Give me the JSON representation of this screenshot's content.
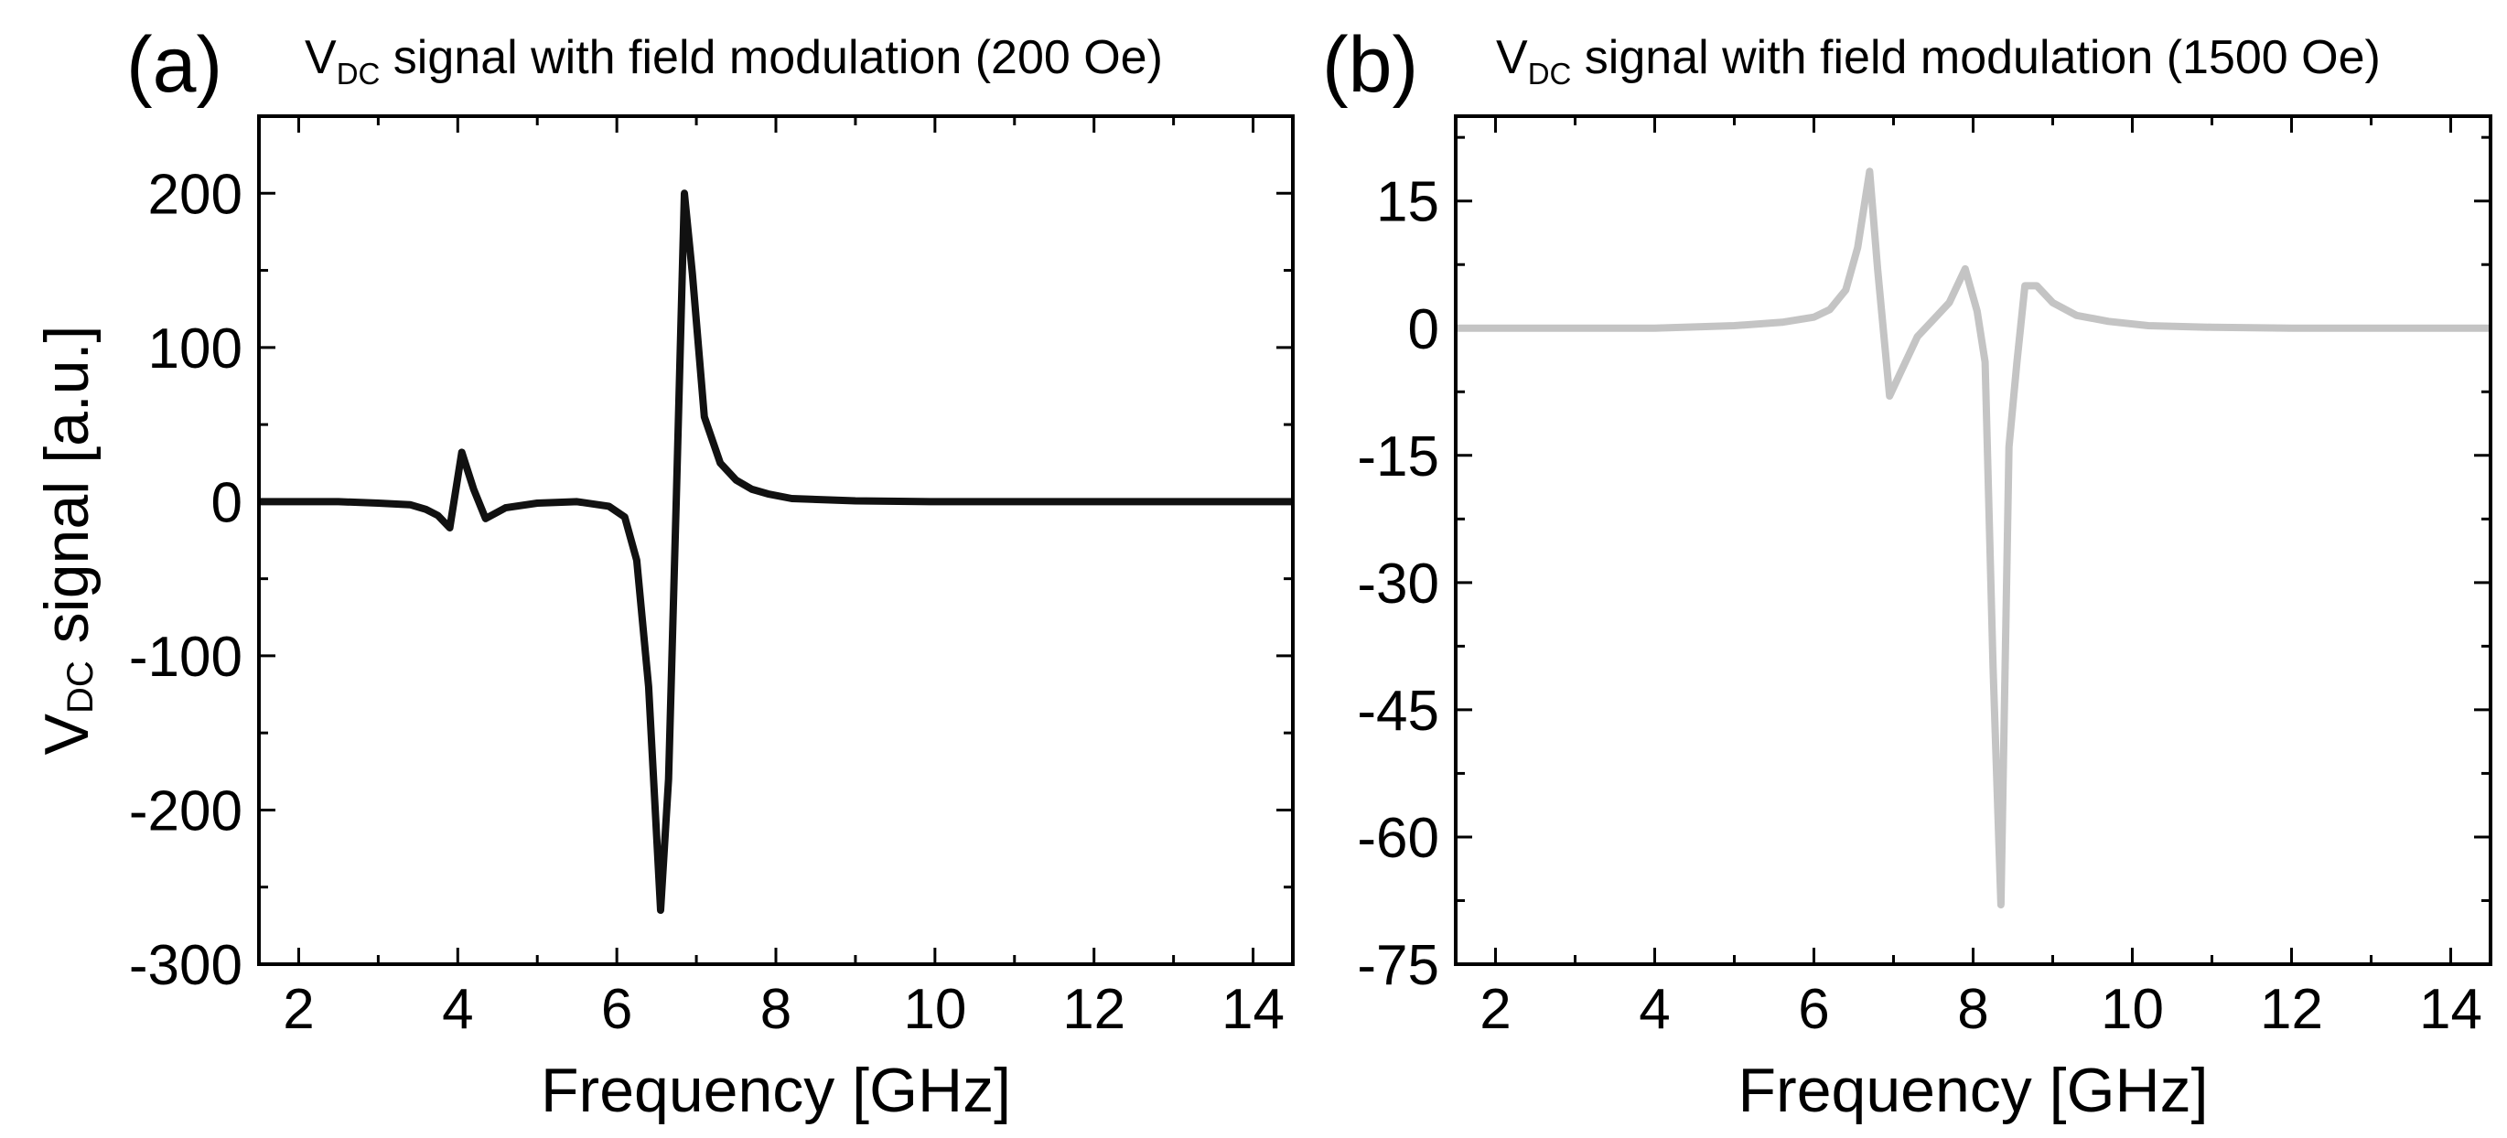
{
  "chart_data": [
    {
      "type": "line",
      "panel_label": "(a)",
      "title": {
        "main": "V",
        "sub": "DC",
        "rest": " signal with field modulation (200 Oe)"
      },
      "xlabel": "Frequency [GHz]",
      "ylabel": {
        "main": "V",
        "sub": "DC",
        "rest": " signal [a.u.]"
      },
      "xlim": [
        1.5,
        14.5
      ],
      "ylim": [
        -300,
        250
      ],
      "xticks": [
        2,
        4,
        6,
        8,
        10,
        12,
        14
      ],
      "xtick_labels": [
        "2",
        "4",
        "6",
        "8",
        "10",
        "12",
        "14"
      ],
      "yticks": [
        -300,
        -200,
        -100,
        0,
        100,
        200
      ],
      "ytick_labels": [
        "-300",
        "-200",
        "-100",
        "0",
        "100",
        "200"
      ],
      "x_minor_step": 1,
      "y_minor_step": 50,
      "series": [
        {
          "name": "200 Oe",
          "color": "#111111",
          "x": [
            1.5,
            2.5,
            3.0,
            3.4,
            3.6,
            3.75,
            3.9,
            4.05,
            4.2,
            4.35,
            4.6,
            5.0,
            5.5,
            5.9,
            6.1,
            6.25,
            6.4,
            6.55,
            6.65,
            6.75,
            6.85,
            6.95,
            7.1,
            7.3,
            7.5,
            7.7,
            7.9,
            8.2,
            9.0,
            10,
            12,
            14.5
          ],
          "y": [
            0,
            0,
            -1,
            -2,
            -5,
            -9,
            -17,
            32,
            8,
            -11,
            -4,
            -1,
            0,
            -3,
            -10,
            -38,
            -120,
            -265,
            -180,
            5,
            200,
            148,
            55,
            25,
            14,
            8,
            5,
            2,
            0.5,
            0,
            0,
            0
          ]
        }
      ]
    },
    {
      "type": "line",
      "panel_label": "(b)",
      "title": {
        "main": "V",
        "sub": "DC",
        "rest": " signal with field modulation (1500 Oe)"
      },
      "xlabel": "Frequency [GHz]",
      "xlim": [
        1.5,
        14.5
      ],
      "ylim": [
        -75,
        25
      ],
      "xticks": [
        2,
        4,
        6,
        8,
        10,
        12,
        14
      ],
      "xtick_labels": [
        "2",
        "4",
        "6",
        "8",
        "10",
        "12",
        "14"
      ],
      "yticks": [
        -75,
        -60,
        -45,
        -30,
        -15,
        0,
        15
      ],
      "ytick_labels": [
        "-75",
        "-60",
        "-45",
        "-30",
        "-15",
        "0",
        "15"
      ],
      "x_minor_step": 1,
      "y_minor_step": 7.5,
      "series": [
        {
          "name": "1500 Oe",
          "color": "#c4c4c4",
          "x": [
            1.5,
            3,
            4,
            5,
            5.6,
            6.0,
            6.2,
            6.4,
            6.55,
            6.7,
            6.8,
            6.95,
            7.1,
            7.3,
            7.5,
            7.7,
            7.9,
            8.05,
            8.15,
            8.25,
            8.35,
            8.45,
            8.55,
            8.65,
            8.8,
            9.0,
            9.3,
            9.7,
            10.2,
            11,
            12,
            14.5
          ],
          "y": [
            0,
            0,
            0,
            0.3,
            0.7,
            1.3,
            2.2,
            4.5,
            9.5,
            18.5,
            7,
            -8,
            -5,
            -1,
            1,
            3,
            7,
            2,
            -4,
            -40,
            -68,
            -14,
            -4,
            5,
            5,
            3,
            1.5,
            0.8,
            0.3,
            0.1,
            0,
            0
          ]
        }
      ]
    }
  ]
}
